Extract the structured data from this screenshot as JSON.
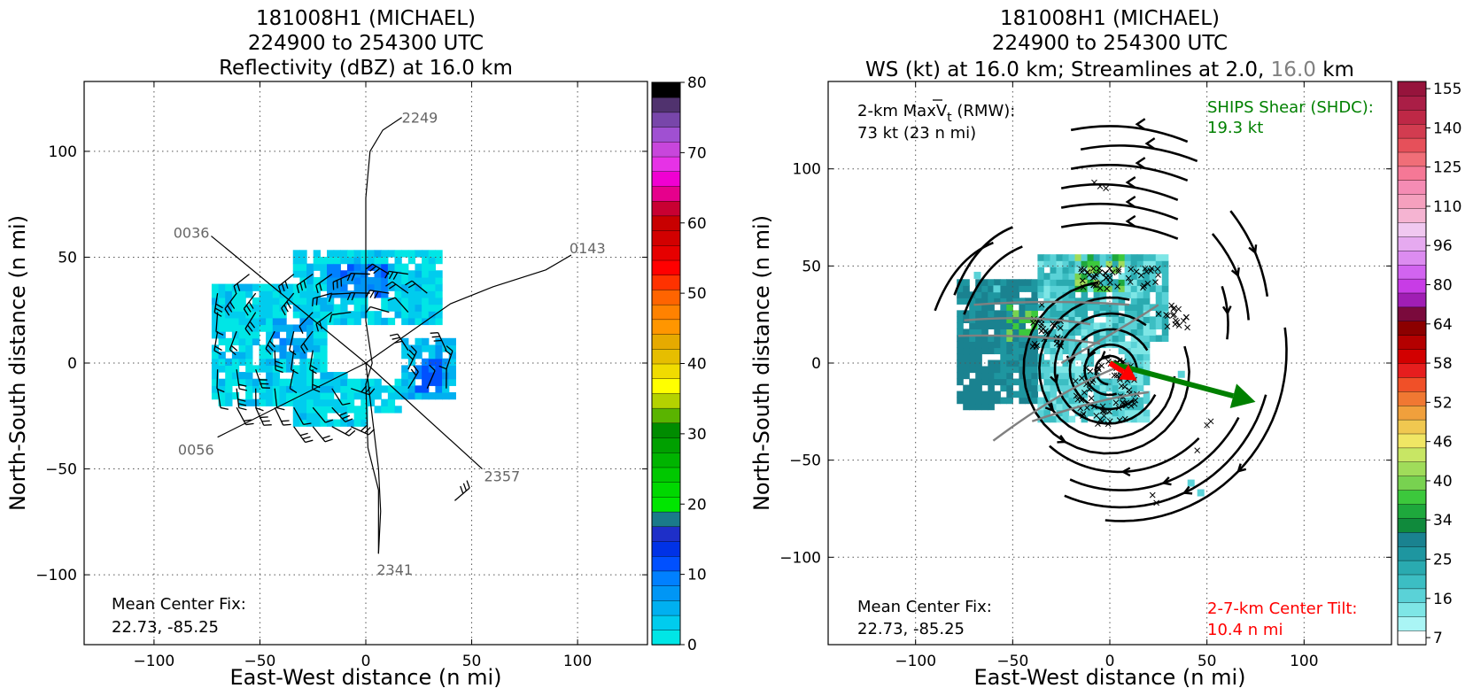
{
  "panels": [
    {
      "title_lines": [
        "181008H1 (MICHAEL)",
        "224900 to 254300 UTC",
        "Reflectivity (dBZ) at 16.0 km"
      ],
      "xlabel": "East-West distance (n mi)",
      "ylabel": "North-South distance (n mi)",
      "note_lines": [
        "Mean Center Fix:",
        "22.73, -85.25"
      ]
    },
    {
      "title_lines": [
        "181008H1 (MICHAEL)",
        "224900 to 254300 UTC"
      ],
      "title_line3_parts": [
        "WS (kt) at 16.0 km; Streamlines at 2.0, ",
        "16.0",
        " km"
      ],
      "xlabel": "East-West distance (n mi)",
      "ylabel": "North-South distance (n mi)",
      "note_lines": [
        "Mean Center Fix:",
        "22.73, -85.25"
      ],
      "maxvt_lines": [
        "2-km MaxV",
        "t",
        " (RMW):",
        "73 kt (23 n mi)"
      ],
      "shear_lines": [
        "SHIPS Shear (SHDC):",
        "19.3 kt"
      ],
      "tilt_lines": [
        "2-7-km Center Tilt:",
        "10.4 n mi"
      ]
    }
  ],
  "colors": {
    "shear": "#008000",
    "tilt": "#ff0000",
    "streamline_upper": "#808080",
    "flight_label": "#666666"
  },
  "chart_data": [
    {
      "type": "heatmap",
      "title": "181008H1 (MICHAEL) 224900 to 254300 UTC Reflectivity (dBZ) at 16.0 km",
      "xlabel": "East-West distance (n mi)",
      "ylabel": "North-South distance (n mi)",
      "xlim": [
        -133,
        133
      ],
      "ylim": [
        -133,
        133
      ],
      "x_ticks": [
        -100,
        -50,
        0,
        50,
        100
      ],
      "y_ticks": [
        -100,
        -50,
        0,
        50,
        100
      ],
      "grid": true,
      "colorbar": {
        "ticks": [
          0,
          10,
          20,
          30,
          40,
          50,
          60,
          70,
          80
        ],
        "colors": [
          "#00e6e6",
          "#00ccee",
          "#00b0f0",
          "#0096f5",
          "#0080ff",
          "#0050ff",
          "#0032e6",
          "#1e2fc8",
          "#1a7a8a",
          "#00e600",
          "#00d800",
          "#00c800",
          "#00b400",
          "#00a000",
          "#008c00",
          "#5ab400",
          "#b4d200",
          "#ffff00",
          "#f0dc00",
          "#e6be00",
          "#e6aa00",
          "#ff9600",
          "#ff8200",
          "#ff6400",
          "#ff3200",
          "#ff0000",
          "#e60000",
          "#d20000",
          "#c80000",
          "#c80032",
          "#e6008c",
          "#f000d2",
          "#e632e6",
          "#c846dc",
          "#a050d2",
          "#7846aa",
          "#50326e",
          "#000000"
        ]
      },
      "flight_tracks": [
        {
          "label": "2249",
          "points": [
            [
              0,
              78
            ],
            [
              2,
              100
            ],
            [
              8,
              110
            ],
            [
              17,
              116
            ]
          ]
        },
        {
          "label": "0143",
          "points": [
            [
              0,
              0
            ],
            [
              40,
              28
            ],
            [
              60,
              36
            ],
            [
              85,
              44
            ],
            [
              97,
              51
            ]
          ]
        },
        {
          "label": "2357",
          "points": [
            [
              0,
              0
            ],
            [
              55,
              -50
            ]
          ]
        },
        {
          "label": "2341",
          "points": [
            [
              0,
              0
            ],
            [
              6,
              -50
            ],
            [
              7,
              -70
            ],
            [
              6,
              -90
            ]
          ]
        },
        {
          "label": "0036",
          "points": [
            [
              0,
              0
            ],
            [
              -73,
              60
            ]
          ]
        },
        {
          "label": "0056",
          "points": [
            [
              0,
              0
            ],
            [
              -70,
              -35
            ]
          ]
        }
      ],
      "reflectivity_region": "weak echoes (0-15 dBZ) within about 75 n mi of center, strongest ~10-15 dBZ"
    },
    {
      "type": "heatmap",
      "title": "181008H1 (MICHAEL) 224900 to 254300 UTC WS (kt) at 16.0 km; Streamlines at 2.0, 16.0 km",
      "xlabel": "East-West distance (n mi)",
      "ylabel": "North-South distance (n mi)",
      "xlim": [
        -145,
        145
      ],
      "ylim": [
        -145,
        145
      ],
      "x_ticks": [
        -100,
        -50,
        0,
        50,
        100
      ],
      "y_ticks": [
        -100,
        -50,
        0,
        50,
        100
      ],
      "grid": true,
      "colorbar": {
        "ticks": [
          7,
          16,
          25,
          34,
          40,
          46,
          52,
          58,
          64,
          80,
          96,
          110,
          125,
          140,
          155
        ],
        "colors": [
          "#ffffff",
          "#aaf5f5",
          "#7ee6e6",
          "#5ad2d7",
          "#3cbec3",
          "#2aaab0",
          "#1e96a0",
          "#1a8290",
          "#108a3c",
          "#1ea83c",
          "#3cc83c",
          "#78d250",
          "#a0dc5a",
          "#c8e664",
          "#f0e664",
          "#f0c850",
          "#f0a03c",
          "#f07832",
          "#f05028",
          "#e61e1e",
          "#d20000",
          "#b40000",
          "#8c0000",
          "#7a0a3c",
          "#a01eb4",
          "#c83ce6",
          "#d264f0",
          "#dc8cf0",
          "#e6aaf0",
          "#f0c8f0",
          "#f5b4d2",
          "#f5a0be",
          "#f58cb4",
          "#f57896",
          "#f06e78",
          "#e6505a",
          "#d23c50",
          "#be2846",
          "#aa1e46",
          "#96143c"
        ]
      },
      "shear_vector": {
        "from": [
          0,
          0
        ],
        "to": [
          75,
          -20
        ],
        "magnitude_kt": 19.3
      },
      "tilt_vector": {
        "from": [
          0,
          0
        ],
        "to": [
          14,
          -9
        ],
        "magnitude_nmi": 10.4
      },
      "wind_speed_region": "16.0-km winds mostly 16-34 kt, a few 34-46 kt patches north and west of center"
    }
  ]
}
